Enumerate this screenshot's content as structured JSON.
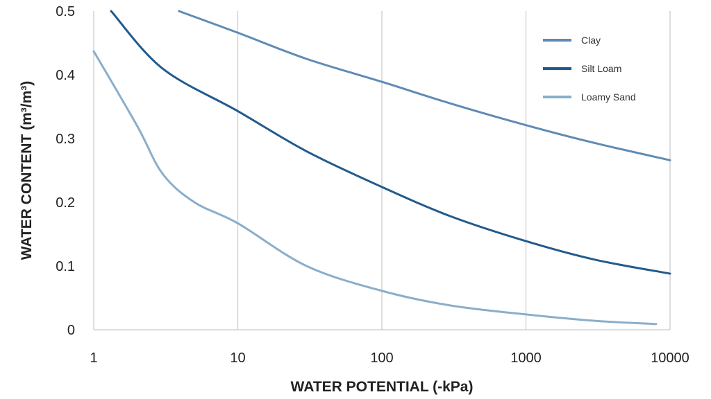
{
  "chart_data": {
    "type": "line",
    "title": "",
    "xlabel": "WATER POTENTIAL (-kPa)",
    "ylabel": "WATER CONTENT (m³/m³)",
    "xscale": "log",
    "xlim": [
      1,
      10000
    ],
    "ylim": [
      0,
      0.5
    ],
    "x_ticks": [
      "1",
      "10",
      "100",
      "1000",
      "10000"
    ],
    "x_tick_values": [
      1,
      10,
      100,
      1000,
      10000
    ],
    "y_ticks": [
      "0",
      "0.1",
      "0.2",
      "0.3",
      "0.4",
      "0.5"
    ],
    "y_tick_values": [
      0,
      0.1,
      0.2,
      0.3,
      0.4,
      0.5
    ],
    "grid": "vertical only",
    "legend_position": "top-right",
    "series": [
      {
        "name": "Clay",
        "color": "#5f8bb3",
        "x": [
          3.9,
          10,
          30,
          100,
          300,
          1000,
          3000,
          10000
        ],
        "y": [
          0.5,
          0.466,
          0.425,
          0.389,
          0.355,
          0.321,
          0.293,
          0.266
        ]
      },
      {
        "name": "Silt Loam",
        "color": "#225a8c",
        "x": [
          1.32,
          3,
          10,
          30,
          100,
          300,
          1000,
          3000,
          10000
        ],
        "y": [
          0.5,
          0.41,
          0.343,
          0.28,
          0.224,
          0.178,
          0.139,
          0.11,
          0.088
        ]
      },
      {
        "name": "Loamy Sand",
        "color": "#8aaecb",
        "x": [
          1,
          2,
          3,
          5,
          10,
          30,
          100,
          300,
          1000,
          3000,
          8000
        ],
        "y": [
          0.437,
          0.32,
          0.245,
          0.2,
          0.167,
          0.1,
          0.061,
          0.038,
          0.024,
          0.014,
          0.009
        ]
      }
    ]
  }
}
